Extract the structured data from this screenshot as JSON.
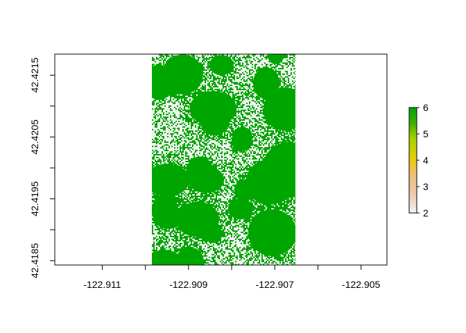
{
  "chart_data": {
    "type": "heatmap",
    "title": "",
    "xlabel": "",
    "ylabel": "",
    "xlim": [
      -122.9121,
      -122.9044
    ],
    "ylim": [
      42.41843,
      42.42184
    ],
    "x_ticks": [
      {
        "value": -122.911,
        "label": "-122.911"
      },
      {
        "value": -122.909,
        "label": "-122.909"
      },
      {
        "value": -122.907,
        "label": "-122.907"
      },
      {
        "value": -122.905,
        "label": "-122.905"
      }
    ],
    "y_ticks": [
      {
        "value": 42.4185,
        "label": "42.4185"
      },
      {
        "value": 42.4195,
        "label": "42.4195"
      },
      {
        "value": 42.4205,
        "label": "42.4205"
      },
      {
        "value": 42.4215,
        "label": "42.4215"
      }
    ],
    "raster_extent": {
      "xmin": -122.90985,
      "xmax": -122.90652,
      "ymin": 42.41843,
      "ymax": 42.42184
    },
    "value_range": [
      2,
      6
    ],
    "dominant_values": [
      2,
      6
    ],
    "legend": {
      "position": "right",
      "ticks": [
        {
          "value": 2,
          "label": "2"
        },
        {
          "value": 3,
          "label": "3"
        },
        {
          "value": 4,
          "label": "4"
        },
        {
          "value": 5,
          "label": "5"
        },
        {
          "value": 6,
          "label": "6"
        }
      ],
      "colors": [
        "#f2f2f2",
        "#efc4a0",
        "#f0c000",
        "#c4d800",
        "#20a800",
        "#00a600"
      ]
    }
  }
}
